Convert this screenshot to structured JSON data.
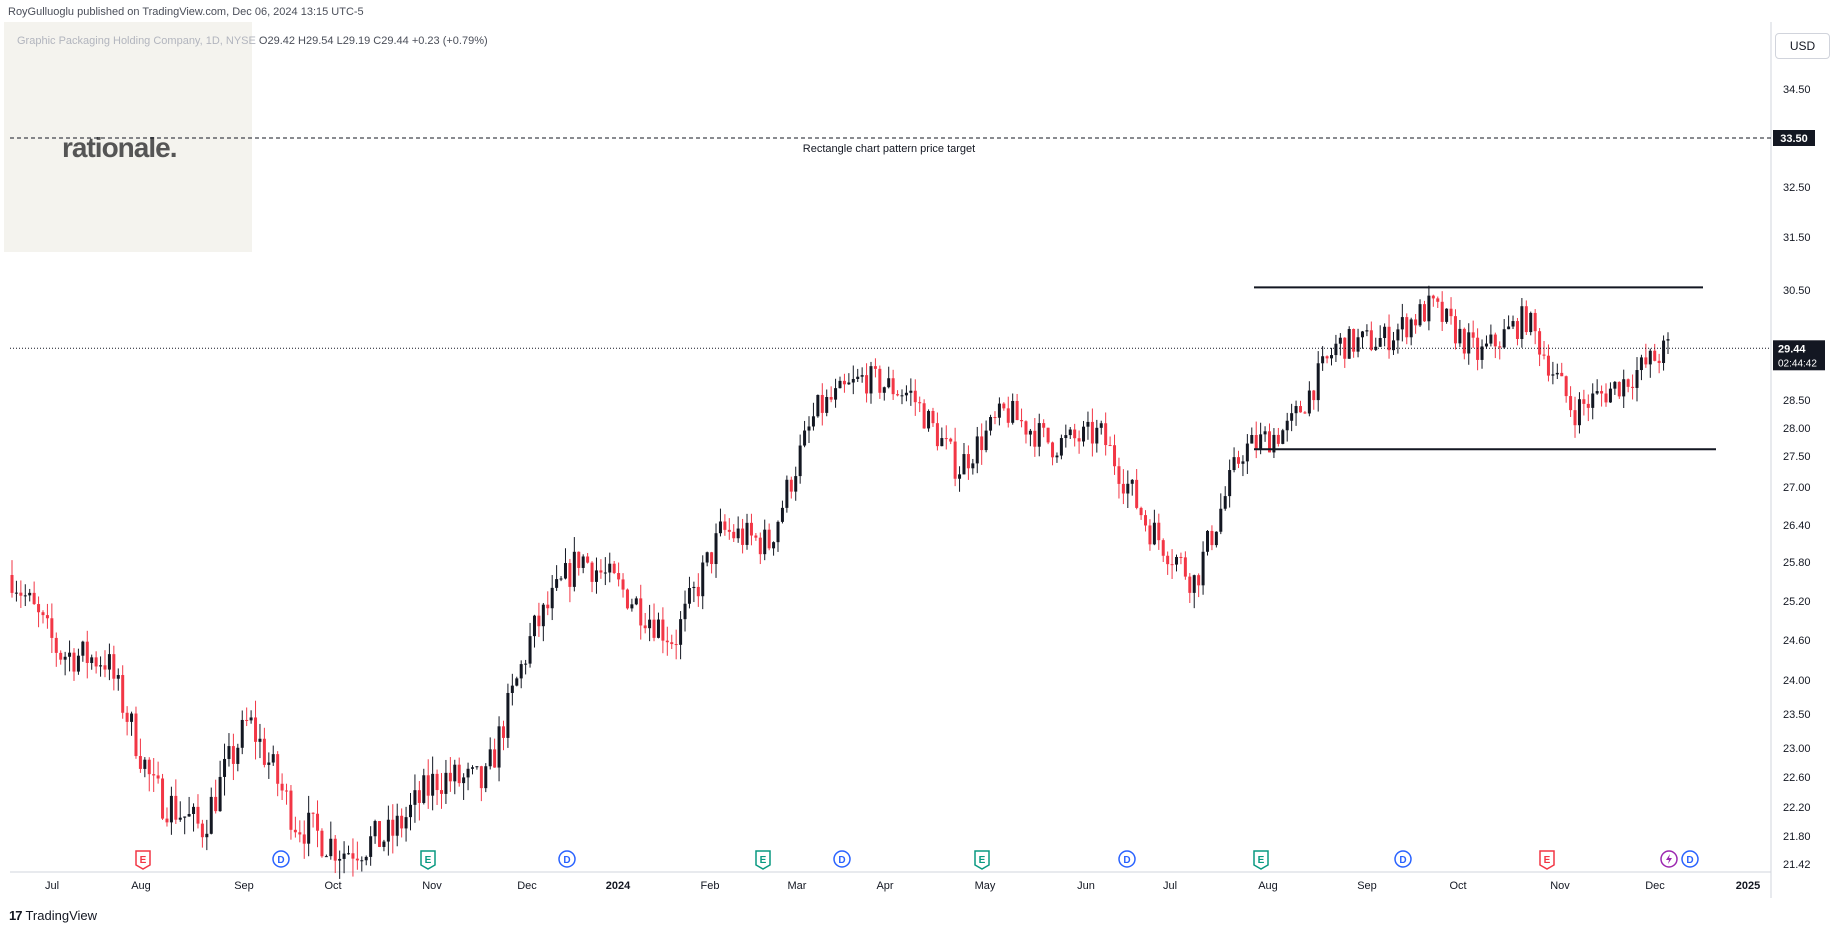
{
  "header": {
    "publisher_text": "RoyGulluoglu published on TradingView.com, Dec 06, 2024 13:15 UTC-5",
    "symbol_name": "Graphic Packaging Holding Company, 1D, NYSE",
    "ohlc": "O29.42  H29.54  L29.19  C29.44  +0.23 (+0.79%)"
  },
  "logo": {
    "text": "rationale."
  },
  "currency_button": "USD",
  "footer": {
    "brand": "TradingView",
    "mark": "17"
  },
  "colors": {
    "up": "#089981",
    "down": "#f23645",
    "candle_up_body": "#131722",
    "candle_down_body": "#f23645",
    "text": "#131722",
    "axis_line": "#d1d4dc",
    "earnings_marker": "#f23645",
    "earnings_marker_green": "#089981",
    "dividend_marker": "#2962ff"
  },
  "chart_data": {
    "type": "candlestick",
    "title": "Graphic Packaging Holding Company, 1D, NYSE",
    "y_ticks": [
      "34.50",
      "33.50",
      "32.50",
      "31.50",
      "30.50",
      "28.50",
      "28.00",
      "27.50",
      "27.00",
      "26.40",
      "25.80",
      "25.20",
      "24.60",
      "24.00",
      "23.50",
      "23.00",
      "22.60",
      "22.20",
      "21.80",
      "21.42"
    ],
    "ylim": [
      21.42,
      35.0
    ],
    "y_scale": "log",
    "x_ticks": [
      "Jul",
      "Aug",
      "Sep",
      "Oct",
      "Nov",
      "Dec",
      "2024",
      "Feb",
      "Mar",
      "Apr",
      "May",
      "Jun",
      "Jul",
      "Aug",
      "Sep",
      "Oct",
      "Nov",
      "Dec",
      "2025"
    ],
    "last_price": {
      "value": "29.44",
      "countdown": "02:44:42"
    },
    "price_target": {
      "value": "33.50",
      "label": "Rectangle chart pattern price target"
    },
    "rectangle": {
      "top": 30.55,
      "bottom": 27.62
    },
    "event_markers": [
      {
        "type": "E",
        "color": "red",
        "month": "Aug 2023"
      },
      {
        "type": "D",
        "month": "Sep 2023"
      },
      {
        "type": "E",
        "color": "green",
        "month": "Nov 2023"
      },
      {
        "type": "D",
        "month": "Dec 2023"
      },
      {
        "type": "E",
        "color": "green",
        "month": "Feb 2024"
      },
      {
        "type": "D",
        "month": "Mar 2024"
      },
      {
        "type": "E",
        "color": "green",
        "month": "May 2024"
      },
      {
        "type": "D",
        "month": "Jun 2024"
      },
      {
        "type": "E",
        "color": "green",
        "month": "Aug 2024"
      },
      {
        "type": "D",
        "month": "Sep 2024"
      },
      {
        "type": "E",
        "color": "red",
        "month": "Nov 2024"
      },
      {
        "type": "split",
        "month": "Dec 2024"
      },
      {
        "type": "D",
        "month": "Dec 2024"
      }
    ],
    "series": [
      {
        "x": "2023-06",
        "close": 25.6
      },
      {
        "x": "2023-07",
        "close": 24.4
      },
      {
        "x": "2023-08",
        "close": 24.3
      },
      {
        "x": "2023-08",
        "close": 22.4
      },
      {
        "x": "2023-09",
        "close": 21.9
      },
      {
        "x": "2023-09",
        "close": 23.4
      },
      {
        "x": "2023-10",
        "close": 22.0
      },
      {
        "x": "2023-10",
        "close": 21.6
      },
      {
        "x": "2023-11",
        "close": 21.8
      },
      {
        "x": "2023-11",
        "close": 22.6
      },
      {
        "x": "2023-12",
        "close": 22.5
      },
      {
        "x": "2023-12",
        "close": 24.7
      },
      {
        "x": "2024-01",
        "close": 25.9
      },
      {
        "x": "2024-01",
        "close": 25.3
      },
      {
        "x": "2024-02",
        "close": 24.6
      },
      {
        "x": "2024-02",
        "close": 26.3
      },
      {
        "x": "2024-03",
        "close": 26.1
      },
      {
        "x": "2024-03",
        "close": 28.3
      },
      {
        "x": "2024-04",
        "close": 28.9
      },
      {
        "x": "2024-04",
        "close": 28.6
      },
      {
        "x": "2024-05",
        "close": 27.3
      },
      {
        "x": "2024-05",
        "close": 28.3
      },
      {
        "x": "2024-06",
        "close": 27.7
      },
      {
        "x": "2024-06",
        "close": 27.9
      },
      {
        "x": "2024-07",
        "close": 26.4
      },
      {
        "x": "2024-07",
        "close": 25.5
      },
      {
        "x": "2024-07",
        "close": 27.6
      },
      {
        "x": "2024-08",
        "close": 28.0
      },
      {
        "x": "2024-08",
        "close": 29.5
      },
      {
        "x": "2024-09",
        "close": 29.6
      },
      {
        "x": "2024-09",
        "close": 30.2
      },
      {
        "x": "2024-10",
        "close": 29.3
      },
      {
        "x": "2024-10",
        "close": 30.0
      },
      {
        "x": "2024-11",
        "close": 28.3
      },
      {
        "x": "2024-11",
        "close": 28.8
      },
      {
        "x": "2024-12",
        "close": 29.44
      }
    ]
  }
}
